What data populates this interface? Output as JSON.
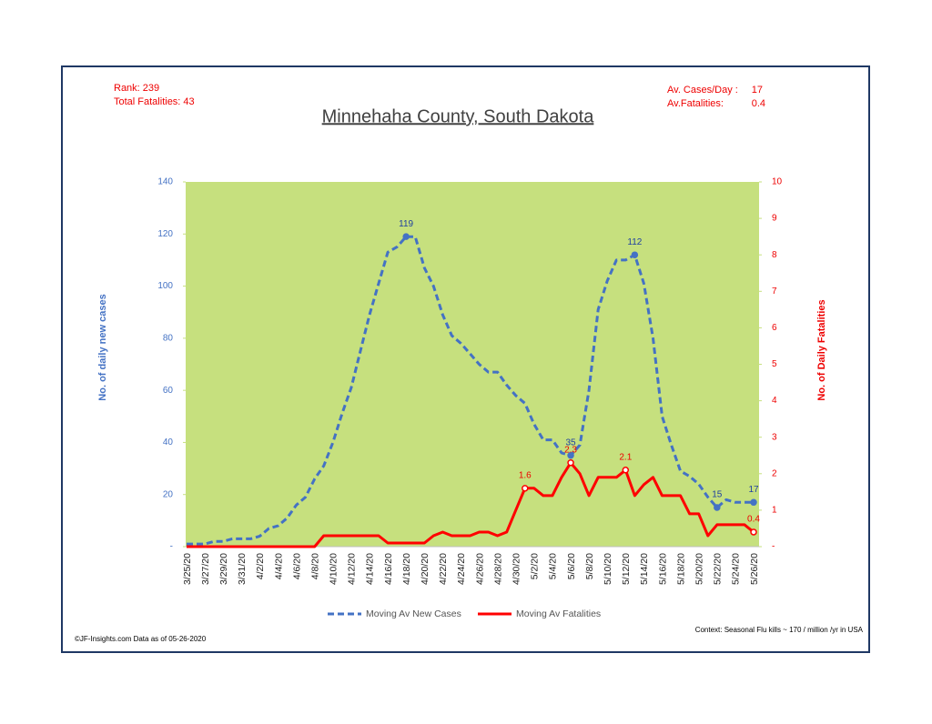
{
  "chart_data": {
    "type": "line",
    "title": "Minnehaha County, South Dakota",
    "annotations": {
      "rank": "Rank: 239",
      "total_fatalities": "Total Fatalities: 43",
      "av_cases_label": "Av. Cases/Day :",
      "av_cases_value": "17",
      "av_fatalities_label": "Av.Fatalities:",
      "av_fatalities_value": "0.4",
      "copyright": "©JF-Insights.com   Data as of 05-26-2020",
      "context": "Context: Seasonal Flu kills ~ 170 / million /yr in USA"
    },
    "y_label": "No. of daily new  cases",
    "y2_label": "No. of Daily Fatalities",
    "categories": [
      "3/25/20",
      null,
      "3/27/20",
      null,
      "3/29/20",
      null,
      "3/31/20",
      null,
      "4/2/20",
      null,
      "4/4/20",
      null,
      "4/6/20",
      null,
      "4/8/20",
      null,
      "4/10/20",
      null,
      "4/12/20",
      null,
      "4/14/20",
      null,
      "4/16/20",
      null,
      "4/18/20",
      null,
      "4/20/20",
      null,
      "4/22/20",
      null,
      "4/24/20",
      null,
      "4/26/20",
      null,
      "4/28/20",
      null,
      "4/30/20",
      null,
      "5/2/20",
      null,
      "5/4/20",
      null,
      "5/6/20",
      null,
      "5/8/20",
      null,
      "5/10/20",
      null,
      "5/12/20",
      null,
      "5/14/20",
      null,
      "5/16/20",
      null,
      "5/18/20",
      null,
      "5/20/20",
      null,
      "5/22/20",
      null,
      "5/24/20",
      null,
      "5/26/20"
    ],
    "series": [
      {
        "name": "Moving Av New Cases",
        "color": "#4472c4",
        "dashed": true,
        "axis": "y",
        "values": [
          1,
          1,
          1,
          2,
          2,
          3,
          3,
          3,
          4,
          7,
          8,
          11,
          16,
          19,
          26,
          31,
          40,
          51,
          61,
          75,
          89,
          101,
          113,
          115,
          119,
          119,
          107,
          100,
          89,
          81,
          78,
          74,
          70,
          67,
          67,
          62,
          58,
          55,
          47,
          41,
          41,
          36,
          35,
          39,
          60,
          91,
          102,
          110,
          110,
          112,
          101,
          80,
          50,
          39,
          29,
          27,
          24,
          19,
          15,
          18,
          17,
          17,
          17
        ],
        "value_labels": [
          null,
          null,
          null,
          null,
          null,
          null,
          null,
          null,
          null,
          null,
          null,
          null,
          null,
          null,
          null,
          null,
          null,
          null,
          null,
          null,
          null,
          null,
          null,
          null,
          "119",
          null,
          null,
          null,
          null,
          null,
          null,
          null,
          null,
          null,
          null,
          null,
          null,
          null,
          null,
          null,
          null,
          null,
          "35",
          null,
          null,
          null,
          null,
          null,
          null,
          "112",
          null,
          null,
          null,
          null,
          null,
          null,
          null,
          null,
          "15",
          null,
          null,
          null,
          "17"
        ]
      },
      {
        "name": "Moving Av Fatalities",
        "color": "#ff0000",
        "dashed": false,
        "axis": "y2",
        "values": [
          0,
          0,
          0,
          0,
          0,
          0,
          0,
          0,
          0,
          0,
          0,
          0,
          0,
          0,
          0,
          0.3,
          0.3,
          0.3,
          0.3,
          0.3,
          0.3,
          0.3,
          0.1,
          0.1,
          0.1,
          0.1,
          0.1,
          0.3,
          0.4,
          0.3,
          0.3,
          0.3,
          0.4,
          0.4,
          0.3,
          0.4,
          1.0,
          1.6,
          1.6,
          1.4,
          1.4,
          1.9,
          2.3,
          2.0,
          1.4,
          1.9,
          1.9,
          1.9,
          2.1,
          1.4,
          1.7,
          1.9,
          1.4,
          1.4,
          1.4,
          0.9,
          0.9,
          0.3,
          0.6,
          0.6,
          0.6,
          0.6,
          0.4
        ],
        "value_labels": [
          null,
          null,
          null,
          null,
          null,
          null,
          null,
          null,
          null,
          null,
          null,
          null,
          null,
          null,
          null,
          null,
          null,
          null,
          null,
          null,
          null,
          null,
          null,
          null,
          null,
          null,
          null,
          null,
          null,
          null,
          null,
          null,
          null,
          null,
          null,
          null,
          null,
          "1.6",
          null,
          null,
          null,
          null,
          "2.3",
          null,
          null,
          null,
          null,
          null,
          "2.1",
          null,
          null,
          null,
          null,
          null,
          null,
          null,
          null,
          null,
          null,
          null,
          null,
          null,
          "0.4"
        ]
      }
    ],
    "ylim": [
      0,
      140
    ],
    "yticks": [
      {
        "value": 0,
        "label": "-"
      },
      20,
      40,
      60,
      80,
      100,
      120,
      140
    ],
    "y2lim": [
      0,
      10
    ],
    "y2ticks": [
      {
        "value": 0,
        "label": "-"
      },
      1,
      2,
      3,
      4,
      5,
      6,
      7,
      8,
      9,
      10
    ],
    "plot_background": "#c6e07e"
  }
}
